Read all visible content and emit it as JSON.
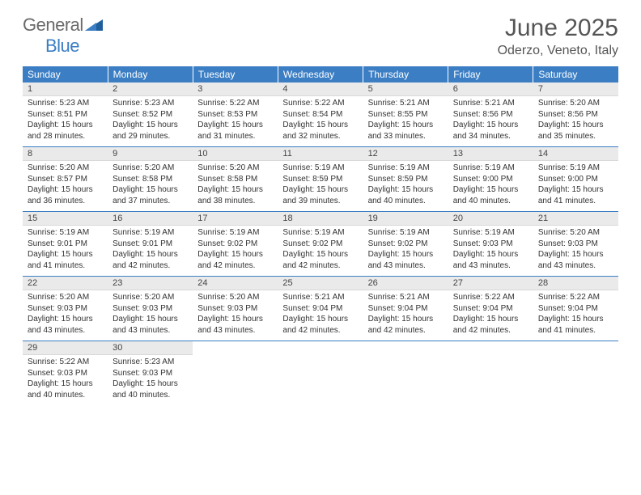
{
  "brand": {
    "text1": "General",
    "text2": "Blue"
  },
  "title": "June 2025",
  "location": "Oderzo, Veneto, Italy",
  "colors": {
    "header_bg": "#3b7ec4",
    "header_text": "#ffffff",
    "daynum_bg": "#eaeaea",
    "text": "#333333",
    "logo_gray": "#6a6a6a",
    "logo_blue": "#3b7ec4",
    "page_bg": "#ffffff",
    "separator": "#3b7ec4"
  },
  "weekdays": [
    "Sunday",
    "Monday",
    "Tuesday",
    "Wednesday",
    "Thursday",
    "Friday",
    "Saturday"
  ],
  "days": [
    {
      "n": "1",
      "sr": "5:23 AM",
      "ss": "8:51 PM",
      "dl": "15 hours and 28 minutes."
    },
    {
      "n": "2",
      "sr": "5:23 AM",
      "ss": "8:52 PM",
      "dl": "15 hours and 29 minutes."
    },
    {
      "n": "3",
      "sr": "5:22 AM",
      "ss": "8:53 PM",
      "dl": "15 hours and 31 minutes."
    },
    {
      "n": "4",
      "sr": "5:22 AM",
      "ss": "8:54 PM",
      "dl": "15 hours and 32 minutes."
    },
    {
      "n": "5",
      "sr": "5:21 AM",
      "ss": "8:55 PM",
      "dl": "15 hours and 33 minutes."
    },
    {
      "n": "6",
      "sr": "5:21 AM",
      "ss": "8:56 PM",
      "dl": "15 hours and 34 minutes."
    },
    {
      "n": "7",
      "sr": "5:20 AM",
      "ss": "8:56 PM",
      "dl": "15 hours and 35 minutes."
    },
    {
      "n": "8",
      "sr": "5:20 AM",
      "ss": "8:57 PM",
      "dl": "15 hours and 36 minutes."
    },
    {
      "n": "9",
      "sr": "5:20 AM",
      "ss": "8:58 PM",
      "dl": "15 hours and 37 minutes."
    },
    {
      "n": "10",
      "sr": "5:20 AM",
      "ss": "8:58 PM",
      "dl": "15 hours and 38 minutes."
    },
    {
      "n": "11",
      "sr": "5:19 AM",
      "ss": "8:59 PM",
      "dl": "15 hours and 39 minutes."
    },
    {
      "n": "12",
      "sr": "5:19 AM",
      "ss": "8:59 PM",
      "dl": "15 hours and 40 minutes."
    },
    {
      "n": "13",
      "sr": "5:19 AM",
      "ss": "9:00 PM",
      "dl": "15 hours and 40 minutes."
    },
    {
      "n": "14",
      "sr": "5:19 AM",
      "ss": "9:00 PM",
      "dl": "15 hours and 41 minutes."
    },
    {
      "n": "15",
      "sr": "5:19 AM",
      "ss": "9:01 PM",
      "dl": "15 hours and 41 minutes."
    },
    {
      "n": "16",
      "sr": "5:19 AM",
      "ss": "9:01 PM",
      "dl": "15 hours and 42 minutes."
    },
    {
      "n": "17",
      "sr": "5:19 AM",
      "ss": "9:02 PM",
      "dl": "15 hours and 42 minutes."
    },
    {
      "n": "18",
      "sr": "5:19 AM",
      "ss": "9:02 PM",
      "dl": "15 hours and 42 minutes."
    },
    {
      "n": "19",
      "sr": "5:19 AM",
      "ss": "9:02 PM",
      "dl": "15 hours and 43 minutes."
    },
    {
      "n": "20",
      "sr": "5:19 AM",
      "ss": "9:03 PM",
      "dl": "15 hours and 43 minutes."
    },
    {
      "n": "21",
      "sr": "5:20 AM",
      "ss": "9:03 PM",
      "dl": "15 hours and 43 minutes."
    },
    {
      "n": "22",
      "sr": "5:20 AM",
      "ss": "9:03 PM",
      "dl": "15 hours and 43 minutes."
    },
    {
      "n": "23",
      "sr": "5:20 AM",
      "ss": "9:03 PM",
      "dl": "15 hours and 43 minutes."
    },
    {
      "n": "24",
      "sr": "5:20 AM",
      "ss": "9:03 PM",
      "dl": "15 hours and 43 minutes."
    },
    {
      "n": "25",
      "sr": "5:21 AM",
      "ss": "9:04 PM",
      "dl": "15 hours and 42 minutes."
    },
    {
      "n": "26",
      "sr": "5:21 AM",
      "ss": "9:04 PM",
      "dl": "15 hours and 42 minutes."
    },
    {
      "n": "27",
      "sr": "5:22 AM",
      "ss": "9:04 PM",
      "dl": "15 hours and 42 minutes."
    },
    {
      "n": "28",
      "sr": "5:22 AM",
      "ss": "9:04 PM",
      "dl": "15 hours and 41 minutes."
    },
    {
      "n": "29",
      "sr": "5:22 AM",
      "ss": "9:03 PM",
      "dl": "15 hours and 40 minutes."
    },
    {
      "n": "30",
      "sr": "5:23 AM",
      "ss": "9:03 PM",
      "dl": "15 hours and 40 minutes."
    }
  ],
  "labels": {
    "sunrise": "Sunrise:",
    "sunset": "Sunset:",
    "daylight": "Daylight:"
  },
  "layout": {
    "first_weekday_index": 0,
    "total_cells": 35
  }
}
